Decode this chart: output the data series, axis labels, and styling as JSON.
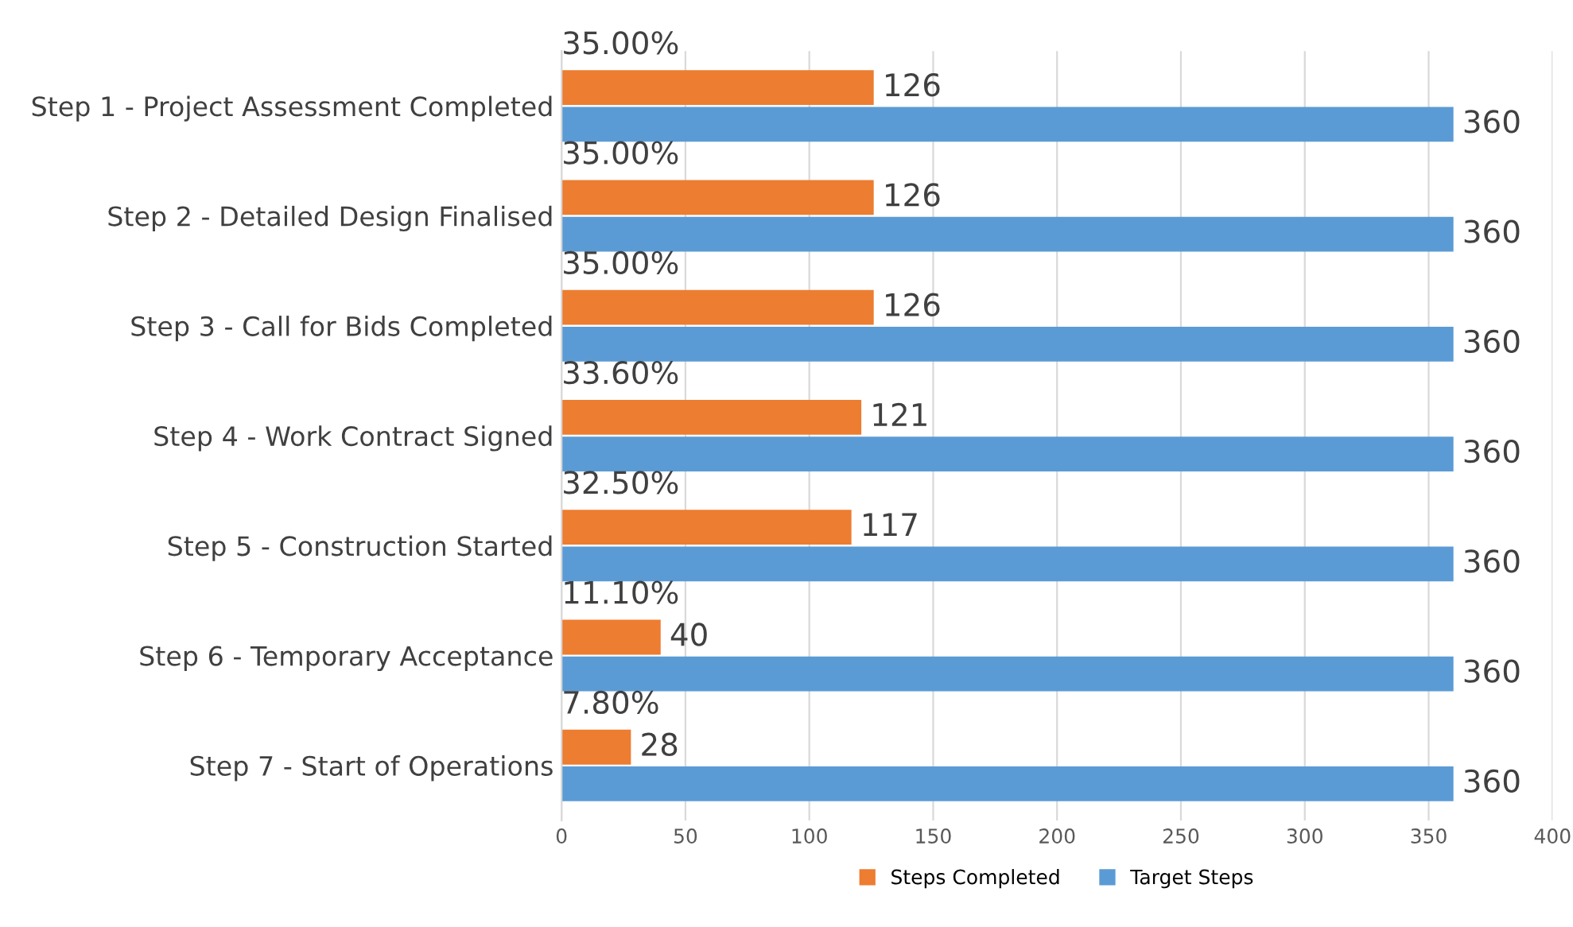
{
  "chart_data": {
    "type": "bar",
    "orientation": "horizontal",
    "categories": [
      "Step 1 - Project Assessment Completed",
      "Step 2 - Detailed Design Finalised",
      "Step 3 - Call for Bids Completed",
      "Step 4 - Work Contract Signed",
      "Step 5 - Construction Started",
      "Step 6 - Temporary Acceptance",
      "Step 7 - Start of Operations"
    ],
    "series": [
      {
        "name": "Steps Completed",
        "color": "#ed7d31",
        "values": [
          126,
          126,
          126,
          121,
          117,
          40,
          28
        ]
      },
      {
        "name": "Target Steps",
        "color": "#5b9bd5",
        "values": [
          360,
          360,
          360,
          360,
          360,
          360,
          360
        ]
      }
    ],
    "xlim": [
      0,
      400
    ],
    "xticks": [
      0,
      50,
      100,
      150,
      200,
      250,
      300,
      350,
      400
    ],
    "grid": "x",
    "legend": "bottom",
    "data_labels": true,
    "annotations": [
      {
        "text": "35.00%",
        "y": "Step 1 - Project Assessment Completed"
      },
      {
        "text": "35.00%",
        "y": "Step 2 - Detailed Design Finalised"
      },
      {
        "text": "35.00%",
        "y": "Step 3 - Call for Bids Completed"
      },
      {
        "text": "33.60%",
        "y": "Step 4 - Work Contract Signed"
      },
      {
        "text": "32.50%",
        "y": "Step 5 - Construction Started"
      },
      {
        "text": "11.10%",
        "y": "Step 6 - Temporary Acceptance"
      },
      {
        "text": "7.80%",
        "y": "Step 7 - Start of Operations"
      }
    ]
  }
}
